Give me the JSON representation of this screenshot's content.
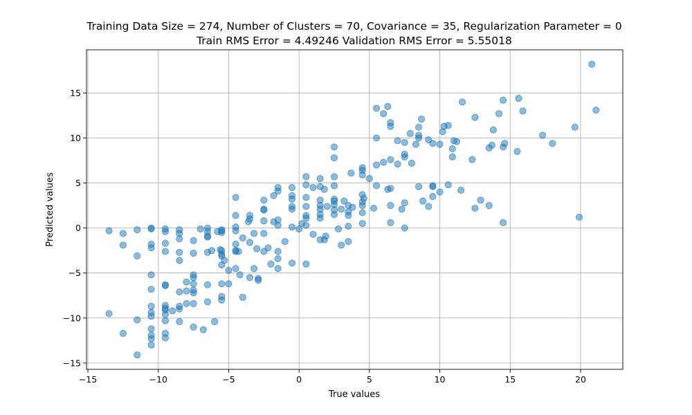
{
  "chart_data": {
    "type": "scatter",
    "title": "Training Data Size = 274, Number of Clusters = 70, Covariance = 35, Regularization Parameter = 0",
    "subtitle": "Train RMS Error = 4.49246 Validation RMS Error = 5.55018",
    "xlabel": "True values",
    "ylabel": "Predicted values",
    "xlim": [
      -15.1,
      23.0
    ],
    "ylim": [
      -15.7,
      19.8
    ],
    "xticks": [
      -15,
      -10,
      -5,
      0,
      5,
      10,
      15,
      20
    ],
    "yticks": [
      -15,
      -10,
      -5,
      0,
      5,
      10,
      15
    ],
    "grid": true,
    "color": "#1f77b4",
    "series": [
      {
        "points": [
          [
            -13.5,
            -0.3
          ],
          [
            -13.5,
            -9.5
          ],
          [
            -12.5,
            -0.6
          ],
          [
            -12.5,
            -1.9
          ],
          [
            -12.5,
            -11.7
          ],
          [
            -11.5,
            -0.2
          ],
          [
            -11.5,
            -3.1
          ],
          [
            -11.5,
            -10.2
          ],
          [
            -11.5,
            -14.1
          ],
          [
            -10.5,
            -0.1
          ],
          [
            -10.5,
            0.0
          ],
          [
            -10.5,
            -1.8
          ],
          [
            -10.5,
            -2.2
          ],
          [
            -10.5,
            -5.2
          ],
          [
            -10.5,
            -6.8
          ],
          [
            -10.5,
            -8.7
          ],
          [
            -10.5,
            -9.4
          ],
          [
            -10.5,
            -9.8
          ],
          [
            -10.5,
            -11.2
          ],
          [
            -10.5,
            -11.9
          ],
          [
            -10.5,
            -12.3
          ],
          [
            -10.5,
            -13.0
          ],
          [
            -9.5,
            -0.1
          ],
          [
            -9.5,
            -0.4
          ],
          [
            -9.5,
            -1.7
          ],
          [
            -9.5,
            -2.6
          ],
          [
            -9.5,
            -6.3
          ],
          [
            -9.5,
            -6.4
          ],
          [
            -9.5,
            -8.6
          ],
          [
            -9.5,
            -8.9
          ],
          [
            -9.5,
            -9.1
          ],
          [
            -9.5,
            -9.6
          ],
          [
            -9.5,
            -10.3
          ],
          [
            -9.5,
            -11.7
          ],
          [
            -9.5,
            -12.2
          ],
          [
            -9.0,
            -9.2
          ],
          [
            -8.5,
            -0.2
          ],
          [
            -8.5,
            -0.6
          ],
          [
            -8.5,
            -1.2
          ],
          [
            -8.5,
            -2.7
          ],
          [
            -8.5,
            -3.6
          ],
          [
            -8.5,
            -7.1
          ],
          [
            -8.5,
            -8.7
          ],
          [
            -8.5,
            -9.0
          ],
          [
            -8.5,
            -10.4
          ],
          [
            -8.0,
            -6.0
          ],
          [
            -8.0,
            -7.0
          ],
          [
            -8.0,
            -8.4
          ],
          [
            -7.5,
            -1.4
          ],
          [
            -7.5,
            -2.8
          ],
          [
            -7.5,
            -5.2
          ],
          [
            -7.5,
            -5.5
          ],
          [
            -7.5,
            -6.2
          ],
          [
            -7.5,
            -6.9
          ],
          [
            -7.5,
            -7.2
          ],
          [
            -7.5,
            -8.4
          ],
          [
            -7.5,
            -11.0
          ],
          [
            -7.0,
            -0.1
          ],
          [
            -6.8,
            -11.3
          ],
          [
            -6.5,
            0.0
          ],
          [
            -6.5,
            -0.4
          ],
          [
            -6.5,
            -0.9
          ],
          [
            -6.5,
            -1.0
          ],
          [
            -6.5,
            -2.7
          ],
          [
            -6.5,
            -6.3
          ],
          [
            -6.5,
            -8.2
          ],
          [
            -6.2,
            -2.5
          ],
          [
            -6.0,
            -10.4
          ],
          [
            -5.8,
            -0.4
          ],
          [
            -5.6,
            -2.4
          ],
          [
            -5.5,
            -0.2
          ],
          [
            -5.5,
            -0.3
          ],
          [
            -5.5,
            -0.5
          ],
          [
            -5.5,
            -2.5
          ],
          [
            -5.5,
            -2.9
          ],
          [
            -5.5,
            -3.1
          ],
          [
            -5.5,
            -4.1
          ],
          [
            -5.5,
            -6.2
          ],
          [
            -5.5,
            -7.6
          ],
          [
            -5.5,
            -8.0
          ],
          [
            -5.3,
            -3.6
          ],
          [
            -5.0,
            -4.7
          ],
          [
            -5.0,
            -6.2
          ],
          [
            -4.5,
            3.4
          ],
          [
            -4.5,
            1.4
          ],
          [
            -4.5,
            0.1
          ],
          [
            -4.5,
            -0.3
          ],
          [
            -4.5,
            -1.8
          ],
          [
            -4.5,
            -2.5
          ],
          [
            -4.5,
            -2.6
          ],
          [
            -4.5,
            -4.5
          ],
          [
            -4.3,
            -2.6
          ],
          [
            -4.2,
            -5.2
          ],
          [
            -4.0,
            -1.1
          ],
          [
            -4.0,
            -7.7
          ],
          [
            -3.6,
            0.7
          ],
          [
            -3.5,
            1.4
          ],
          [
            -3.5,
            1.0
          ],
          [
            -3.5,
            -1.6
          ],
          [
            -3.5,
            -5.5
          ],
          [
            -3.2,
            -0.6
          ],
          [
            -3.2,
            -4.5
          ],
          [
            -3.0,
            -2.3
          ],
          [
            -2.9,
            -5.6
          ],
          [
            -2.9,
            -5.8
          ],
          [
            -2.5,
            3.1
          ],
          [
            -2.5,
            2.1
          ],
          [
            -2.5,
            2.0
          ],
          [
            -2.5,
            0.8
          ],
          [
            -2.5,
            -0.6
          ],
          [
            -2.5,
            -2.6
          ],
          [
            -2.2,
            -2.2
          ],
          [
            -2.0,
            -4.0
          ],
          [
            -1.8,
            0.7
          ],
          [
            -1.8,
            3.6
          ],
          [
            -1.5,
            4.5
          ],
          [
            -1.5,
            4.1
          ],
          [
            -1.5,
            0.9
          ],
          [
            -1.5,
            -2.6
          ],
          [
            -1.5,
            -3.4
          ],
          [
            -1.5,
            -4.5
          ],
          [
            -1.5,
            0.3
          ],
          [
            -1.0,
            -1.5
          ],
          [
            -0.5,
            4.5
          ],
          [
            -0.5,
            3.6
          ],
          [
            -0.5,
            3.2
          ],
          [
            -0.5,
            2.4
          ],
          [
            -0.5,
            2.1
          ],
          [
            -0.5,
            0.1
          ],
          [
            -0.5,
            -3.9
          ],
          [
            0.0,
            -0.1
          ],
          [
            0.2,
            0.5
          ],
          [
            0.5,
            5.7
          ],
          [
            0.5,
            4.8
          ],
          [
            0.5,
            3.4
          ],
          [
            0.5,
            2.4
          ],
          [
            0.5,
            1.4
          ],
          [
            0.5,
            1.1
          ],
          [
            0.5,
            0.3
          ],
          [
            0.5,
            -4.0
          ],
          [
            1.0,
            4.5
          ],
          [
            1.0,
            -0.7
          ],
          [
            1.5,
            5.5
          ],
          [
            1.5,
            4.6
          ],
          [
            1.5,
            3.1
          ],
          [
            1.5,
            2.5
          ],
          [
            1.5,
            2.1
          ],
          [
            1.5,
            1.5
          ],
          [
            1.5,
            1.1
          ],
          [
            1.5,
            -1.3
          ],
          [
            1.8,
            4.3
          ],
          [
            1.8,
            -1.3
          ],
          [
            1.9,
            -0.9
          ],
          [
            2.0,
            2.4
          ],
          [
            2.5,
            9.0
          ],
          [
            2.5,
            7.8
          ],
          [
            2.5,
            5.7
          ],
          [
            2.5,
            4.7
          ],
          [
            2.5,
            3.2
          ],
          [
            2.5,
            3.0
          ],
          [
            2.5,
            2.6
          ],
          [
            2.5,
            2.0
          ],
          [
            2.5,
            1.5
          ],
          [
            2.8,
            -0.1
          ],
          [
            3.0,
            2.1
          ],
          [
            3.0,
            -1.9
          ],
          [
            3.2,
            3.0
          ],
          [
            3.5,
            2.5
          ],
          [
            3.5,
            1.8
          ],
          [
            3.5,
            1.4
          ],
          [
            3.5,
            0.2
          ],
          [
            3.5,
            -1.5
          ],
          [
            3.7,
            6.1
          ],
          [
            3.8,
            2.3
          ],
          [
            4.5,
            6.7
          ],
          [
            4.5,
            6.4
          ],
          [
            4.5,
            5.9
          ],
          [
            4.5,
            3.7
          ],
          [
            4.5,
            2.9
          ],
          [
            4.5,
            2.5
          ],
          [
            4.5,
            1.7
          ],
          [
            4.5,
            0.5
          ],
          [
            4.6,
            3.3
          ],
          [
            5.0,
            5.5
          ],
          [
            5.3,
            2.2
          ],
          [
            5.5,
            13.3
          ],
          [
            5.5,
            10.0
          ],
          [
            5.5,
            7.0
          ],
          [
            5.5,
            4.7
          ],
          [
            6.0,
            12.7
          ],
          [
            6.0,
            7.3
          ],
          [
            6.3,
            13.5
          ],
          [
            6.3,
            4.3
          ],
          [
            6.5,
            11.7
          ],
          [
            6.5,
            11.3
          ],
          [
            6.5,
            7.6
          ],
          [
            6.5,
            4.4
          ],
          [
            6.5,
            2.5
          ],
          [
            6.5,
            0.6
          ],
          [
            7.0,
            9.7
          ],
          [
            7.0,
            7.1
          ],
          [
            7.3,
            2.1
          ],
          [
            7.5,
            9.5
          ],
          [
            7.5,
            8.2
          ],
          [
            7.5,
            7.9
          ],
          [
            7.5,
            2.8
          ],
          [
            7.5,
            0.0
          ],
          [
            7.9,
            10.5
          ],
          [
            8.0,
            7.2
          ],
          [
            8.3,
            9.3
          ],
          [
            8.5,
            11.2
          ],
          [
            8.5,
            10.3
          ],
          [
            8.5,
            10.0
          ],
          [
            8.5,
            4.6
          ],
          [
            8.7,
            12.1
          ],
          [
            8.8,
            3.0
          ],
          [
            9.2,
            9.8
          ],
          [
            9.2,
            2.4
          ],
          [
            9.5,
            9.4
          ],
          [
            9.5,
            4.7
          ],
          [
            9.5,
            4.6
          ],
          [
            9.5,
            3.5
          ],
          [
            10.0,
            9.3
          ],
          [
            10.0,
            4.0
          ],
          [
            10.2,
            10.7
          ],
          [
            10.3,
            11.3
          ],
          [
            10.6,
            11.4
          ],
          [
            10.6,
            4.8
          ],
          [
            10.9,
            7.9
          ],
          [
            10.9,
            8.8
          ],
          [
            11.0,
            9.7
          ],
          [
            11.2,
            9.6
          ],
          [
            11.5,
            4.2
          ],
          [
            11.6,
            14.0
          ],
          [
            12.3,
            7.6
          ],
          [
            12.5,
            12.3
          ],
          [
            12.5,
            2.2
          ],
          [
            12.9,
            3.1
          ],
          [
            13.5,
            8.9
          ],
          [
            13.5,
            2.5
          ],
          [
            13.7,
            9.2
          ],
          [
            13.8,
            10.9
          ],
          [
            14.2,
            12.7
          ],
          [
            14.5,
            14.2
          ],
          [
            14.5,
            9.0
          ],
          [
            14.5,
            0.6
          ],
          [
            14.6,
            9.4
          ],
          [
            15.5,
            8.5
          ],
          [
            15.6,
            14.4
          ],
          [
            15.9,
            13.0
          ],
          [
            17.3,
            10.3
          ],
          [
            18.0,
            9.4
          ],
          [
            19.6,
            11.2
          ],
          [
            19.9,
            1.2
          ],
          [
            20.8,
            18.2
          ],
          [
            21.1,
            13.1
          ]
        ]
      }
    ]
  }
}
